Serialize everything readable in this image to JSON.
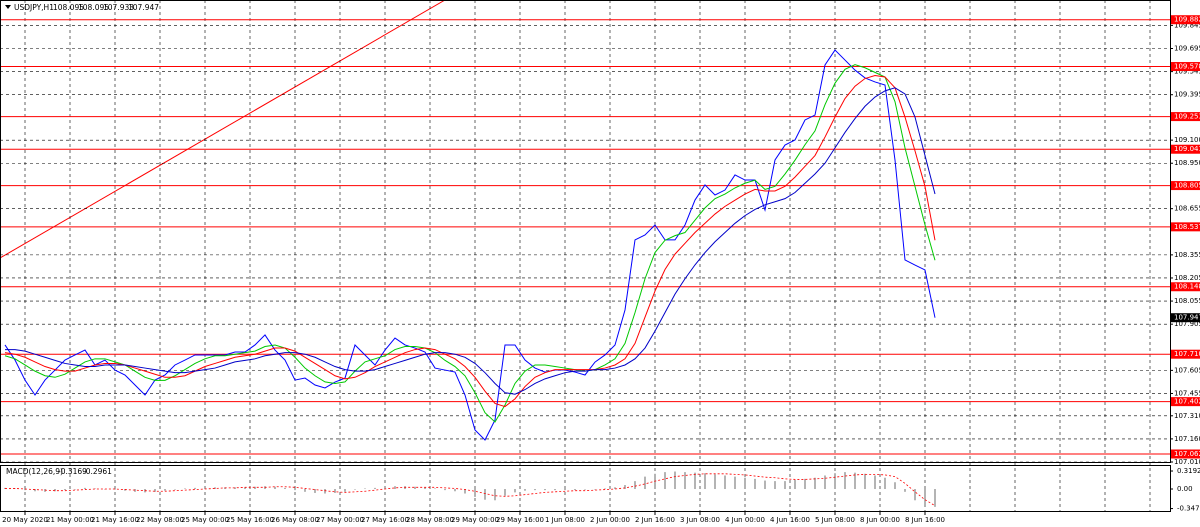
{
  "chart_data": [
    {
      "type": "line",
      "title": "USDJPY,H1",
      "header_ohlc": [
        108.095,
        108.095,
        107.933
      ],
      "ylim": [
        107.01,
        110.01
      ],
      "yticks": [
        109.845,
        109.695,
        109.545,
        109.395,
        {
          "value": 109.1,
          "label": "109.100"
        },
        {
          "value": 108.95,
          "label": "108.950"
        },
        108.655,
        108.355,
        108.205,
        108.055,
        107.905,
        107.605,
        107.455,
        {
          "value": 107.31,
          "label": "107.310"
        },
        {
          "value": 107.16,
          "label": "107.160"
        },
        {
          "value": 107.01,
          "label": "107.010"
        }
      ],
      "xticks": [
        {
          "value": 2,
          "label": "20 May 2020"
        },
        {
          "value": 6.5,
          "label": "21 May 00:00"
        },
        {
          "value": 11,
          "label": "21 May 16:00"
        },
        {
          "value": 15.5,
          "label": "22 May 08:00"
        },
        {
          "value": 20,
          "label": "25 May 00:00"
        },
        {
          "value": 24.5,
          "label": "25 May 16:00"
        },
        {
          "value": 29,
          "label": "26 May 08:00"
        },
        {
          "value": 33.5,
          "label": "27 May 00:00"
        },
        {
          "value": 38,
          "label": "27 May 16:00"
        },
        {
          "value": 42.5,
          "label": "28 May 08:00"
        },
        {
          "value": 47,
          "label": "29 May 00:00"
        },
        {
          "value": 51.5,
          "label": "29 May 16:00"
        },
        {
          "value": 56,
          "label": "1 Jun 08:00"
        },
        {
          "value": 60.5,
          "label": "2 Jun 00:00"
        },
        {
          "value": 65,
          "label": "2 Jun 16:00"
        },
        {
          "value": 69.5,
          "label": "3 Jun 08:00"
        },
        {
          "value": 74,
          "label": "4 Jun 00:00"
        },
        {
          "value": 78.5,
          "label": "4 Jun 16:00"
        },
        {
          "value": 83,
          "label": "5 Jun 08:00"
        },
        {
          "value": 87.5,
          "label": "8 Jun 00:00"
        },
        {
          "value": 92,
          "label": "8 Jun 16:00"
        }
      ],
      "grid": true,
      "levels": [
        109.882,
        109.578,
        109.253,
        109.041,
        108.805,
        108.537,
        108.148,
        {
          "value": 107.71,
          "label": "107.710"
        },
        107.402,
        107.062
      ],
      "level_color": "#ff0000",
      "series": [
        {
          "color": "#0000ff",
          "values": [
            107.77,
            107.672,
            107.542,
            107.445,
            107.542,
            107.607,
            107.672,
            107.705,
            107.737,
            107.64,
            107.672,
            107.607,
            107.575,
            107.51,
            107.445,
            107.542,
            107.575,
            107.64,
            107.672,
            107.705,
            107.705,
            107.705,
            107.705,
            107.724,
            107.724,
            107.77,
            107.835,
            107.737,
            107.672,
            107.542,
            107.555,
            107.51,
            107.491,
            107.529,
            107.555,
            107.77,
            107.705,
            107.64,
            107.737,
            107.815,
            107.77,
            107.75,
            107.724,
            107.62,
            107.607,
            107.594,
            107.445,
            107.218,
            107.153,
            107.283,
            107.77,
            107.77,
            107.672,
            107.62,
            107.594,
            107.607,
            107.607,
            107.594,
            107.575,
            107.659,
            107.705,
            107.77,
            107.997,
            108.452,
            108.484,
            108.549,
            108.452,
            108.452,
            108.549,
            108.711,
            108.809,
            108.744,
            108.776,
            108.874,
            108.841,
            108.841,
            108.646,
            108.971,
            109.068,
            109.101,
            109.231,
            109.263,
            109.588,
            109.685,
            109.62,
            109.555,
            109.504,
            109.478,
            109.458,
            108.971,
            108.322,
            108.289,
            108.257,
            107.947
          ]
        },
        {
          "color": "#00c800",
          "values": [
            107.7,
            107.68,
            107.64,
            107.6,
            107.57,
            107.56,
            107.58,
            107.62,
            107.66,
            107.68,
            107.68,
            107.66,
            107.64,
            107.6,
            107.56,
            107.54,
            107.54,
            107.57,
            107.61,
            107.65,
            107.68,
            107.7,
            107.7,
            107.71,
            107.72,
            107.73,
            107.76,
            107.77,
            107.75,
            107.69,
            107.62,
            107.57,
            107.53,
            107.52,
            107.53,
            107.6,
            107.66,
            107.68,
            107.7,
            107.74,
            107.76,
            107.76,
            107.75,
            107.72,
            107.67,
            107.63,
            107.57,
            107.46,
            107.33,
            107.27,
            107.38,
            107.52,
            107.6,
            107.64,
            107.64,
            107.63,
            107.62,
            107.61,
            107.6,
            107.61,
            107.64,
            107.68,
            107.78,
            107.98,
            108.2,
            108.37,
            108.45,
            108.48,
            108.5,
            108.58,
            108.66,
            108.72,
            108.75,
            108.79,
            108.82,
            108.84,
            108.78,
            108.8,
            108.88,
            108.97,
            109.07,
            109.16,
            109.33,
            109.47,
            109.56,
            109.59,
            109.57,
            109.54,
            109.51,
            109.35,
            109.05,
            108.8,
            108.55,
            108.32
          ]
        },
        {
          "color": "#ff0000",
          "values": [
            107.72,
            107.71,
            107.69,
            107.66,
            107.63,
            107.61,
            107.6,
            107.6,
            107.62,
            107.64,
            107.65,
            107.65,
            107.64,
            107.62,
            107.6,
            107.58,
            107.56,
            107.56,
            107.57,
            107.6,
            107.63,
            107.65,
            107.67,
            107.69,
            107.7,
            107.71,
            107.73,
            107.75,
            107.75,
            107.73,
            107.69,
            107.65,
            107.61,
            107.57,
            107.55,
            107.56,
            107.59,
            107.63,
            107.66,
            107.69,
            107.72,
            107.74,
            107.75,
            107.74,
            107.71,
            107.68,
            107.63,
            107.56,
            107.47,
            107.39,
            107.37,
            107.42,
            107.5,
            107.56,
            107.59,
            107.61,
            107.61,
            107.61,
            107.61,
            107.61,
            107.62,
            107.64,
            107.68,
            107.78,
            107.95,
            108.12,
            108.26,
            108.36,
            108.43,
            108.5,
            108.56,
            108.62,
            108.67,
            108.71,
            108.75,
            108.78,
            108.77,
            108.77,
            108.8,
            108.86,
            108.93,
            109.0,
            109.12,
            109.25,
            109.37,
            109.45,
            109.5,
            109.52,
            109.51,
            109.44,
            109.25,
            109.03,
            108.8,
            108.45
          ]
        },
        {
          "color": "#0000c8",
          "values": [
            107.74,
            107.74,
            107.73,
            107.71,
            107.69,
            107.67,
            107.65,
            107.64,
            107.63,
            107.63,
            107.64,
            107.64,
            107.64,
            107.63,
            107.62,
            107.61,
            107.6,
            107.59,
            107.59,
            107.6,
            107.61,
            107.62,
            107.64,
            107.66,
            107.67,
            107.68,
            107.7,
            107.71,
            107.72,
            107.72,
            107.71,
            107.69,
            107.66,
            107.63,
            107.61,
            107.6,
            107.6,
            107.61,
            107.63,
            107.65,
            107.67,
            107.69,
            107.71,
            107.72,
            107.72,
            107.71,
            107.69,
            107.65,
            107.59,
            107.52,
            107.46,
            107.45,
            107.48,
            107.52,
            107.55,
            107.57,
            107.59,
            107.6,
            107.6,
            107.61,
            107.61,
            107.62,
            107.64,
            107.68,
            107.75,
            107.86,
            107.98,
            108.1,
            108.2,
            108.29,
            108.37,
            108.44,
            108.5,
            108.56,
            108.61,
            108.65,
            108.68,
            108.7,
            108.72,
            108.76,
            108.82,
            108.88,
            108.95,
            109.05,
            109.15,
            109.24,
            109.32,
            109.38,
            109.42,
            109.44,
            109.4,
            109.25,
            109.0,
            108.75
          ]
        }
      ]
    },
    {
      "type": "macd",
      "title": "MACD(12,26,9)",
      "ylim": [
        -0.408,
        0.426
      ],
      "yticks": [
        0.3192,
        {
          "value": 0,
          "label": "0.00"
        },
        -0.3472
      ],
      "series": [
        {
          "color": "#b4b4b4",
          "values": [
            0.02,
            0.01,
            -0.02,
            -0.04,
            -0.05,
            -0.04,
            -0.02,
            0.0,
            0.02,
            0.01,
            0.0,
            -0.01,
            -0.03,
            -0.05,
            -0.06,
            -0.05,
            -0.03,
            -0.01,
            0.01,
            0.02,
            0.03,
            0.03,
            0.03,
            0.03,
            0.03,
            0.04,
            0.05,
            0.04,
            0.02,
            -0.02,
            -0.05,
            -0.07,
            -0.08,
            -0.07,
            -0.05,
            -0.01,
            0.01,
            0.02,
            0.04,
            0.05,
            0.05,
            0.04,
            0.03,
            0.01,
            -0.02,
            -0.04,
            -0.08,
            -0.14,
            -0.19,
            -0.2,
            -0.12,
            -0.06,
            -0.03,
            -0.02,
            -0.02,
            -0.02,
            -0.02,
            -0.02,
            -0.01,
            0.0,
            0.01,
            0.03,
            0.07,
            0.14,
            0.22,
            0.27,
            0.3,
            0.31,
            0.3,
            0.29,
            0.28,
            0.26,
            0.24,
            0.22,
            0.2,
            0.18,
            0.15,
            0.14,
            0.14,
            0.16,
            0.18,
            0.2,
            0.24,
            0.28,
            0.3,
            0.29,
            0.27,
            0.24,
            0.2,
            0.12,
            -0.05,
            -0.2,
            -0.29,
            -0.3169
          ]
        },
        {
          "color": "#ff0000",
          "values": [
            0.01,
            0.01,
            0.0,
            -0.01,
            -0.02,
            -0.03,
            -0.03,
            -0.02,
            -0.01,
            0.0,
            0.0,
            0.0,
            -0.01,
            -0.02,
            -0.03,
            -0.04,
            -0.04,
            -0.03,
            -0.02,
            -0.01,
            0.0,
            0.01,
            0.02,
            0.02,
            0.03,
            0.03,
            0.03,
            0.04,
            0.04,
            0.03,
            0.01,
            -0.01,
            -0.03,
            -0.05,
            -0.06,
            -0.05,
            -0.04,
            -0.02,
            0.0,
            0.02,
            0.03,
            0.03,
            0.03,
            0.03,
            0.02,
            0.01,
            -0.01,
            -0.04,
            -0.08,
            -0.12,
            -0.13,
            -0.12,
            -0.1,
            -0.08,
            -0.06,
            -0.05,
            -0.04,
            -0.03,
            -0.03,
            -0.02,
            -0.01,
            0.0,
            0.02,
            0.05,
            0.09,
            0.14,
            0.18,
            0.22,
            0.24,
            0.26,
            0.27,
            0.27,
            0.27,
            0.26,
            0.25,
            0.23,
            0.21,
            0.2,
            0.18,
            0.17,
            0.17,
            0.18,
            0.19,
            0.21,
            0.23,
            0.25,
            0.26,
            0.26,
            0.25,
            0.22,
            0.1,
            -0.05,
            -0.19,
            -0.2961
          ]
        }
      ]
    }
  ]
}
